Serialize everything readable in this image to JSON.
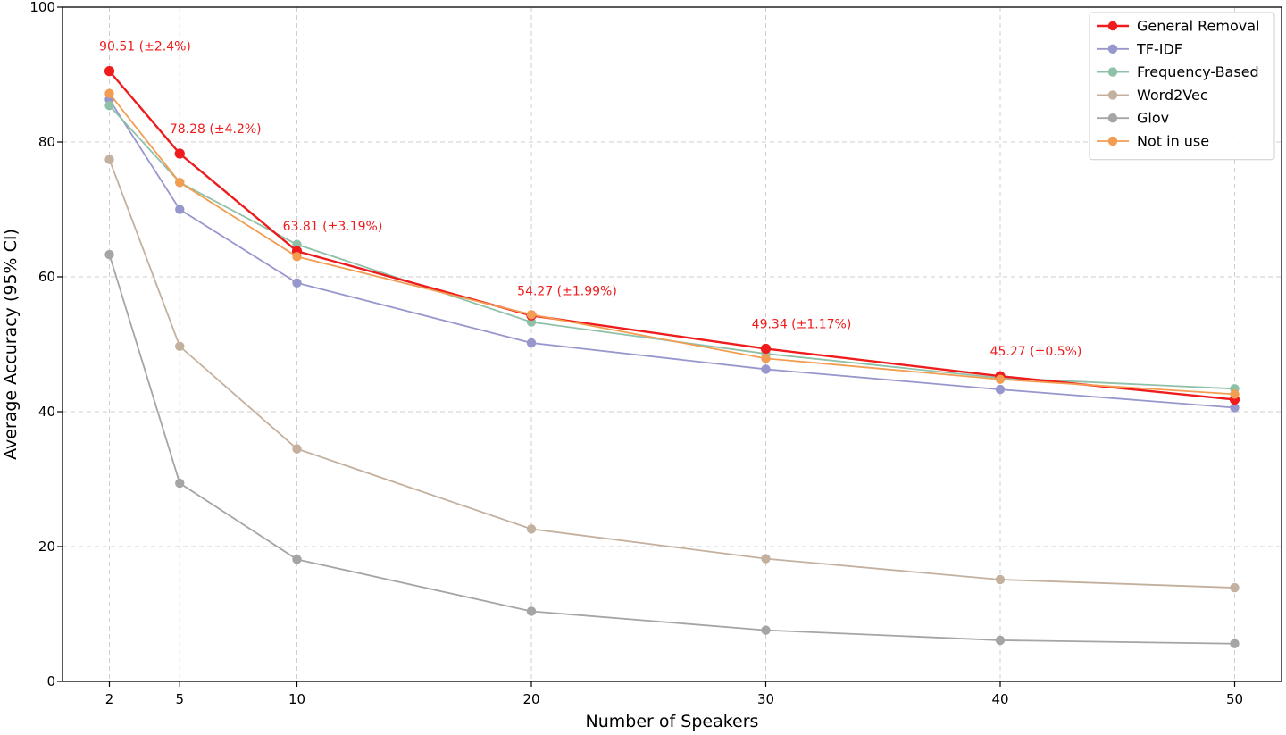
{
  "chart_data": {
    "type": "line",
    "title": "",
    "xlabel": "Number of Speakers",
    "ylabel": "Average Accuracy (95% CI)",
    "x": [
      2,
      5,
      10,
      20,
      30,
      40,
      50
    ],
    "xlim": [
      0,
      52
    ],
    "ylim": [
      0,
      100
    ],
    "xticks": [
      2,
      5,
      10,
      20,
      30,
      40,
      50
    ],
    "yticks": [
      0,
      20,
      40,
      60,
      80,
      100
    ],
    "grid": true,
    "legend_position": "top-right",
    "series": [
      {
        "name": "General Removal",
        "color": "#ee1c1c",
        "emphasis": true,
        "values": [
          90.51,
          78.28,
          63.81,
          54.27,
          49.34,
          45.27,
          41.8
        ]
      },
      {
        "name": "TF-IDF",
        "color": "#9797cd",
        "values": [
          86.3,
          70.0,
          59.1,
          50.2,
          46.3,
          43.3,
          40.6
        ]
      },
      {
        "name": "Frequency-Based",
        "color": "#8fc1a9",
        "values": [
          85.4,
          74.0,
          64.8,
          53.3,
          48.6,
          45.0,
          43.4
        ]
      },
      {
        "name": "Word2Vec",
        "color": "#c4b09f",
        "values": [
          77.4,
          49.7,
          34.5,
          22.6,
          18.2,
          15.1,
          13.9
        ]
      },
      {
        "name": "Glov",
        "color": "#a5a5a5",
        "values": [
          63.3,
          29.4,
          18.1,
          10.4,
          7.6,
          6.1,
          5.6
        ]
      },
      {
        "name": "Not in use",
        "color": "#f29d51",
        "values": [
          87.2,
          74.0,
          63.0,
          54.4,
          47.9,
          44.8,
          42.6
        ]
      }
    ],
    "annotations": [
      {
        "x": 2,
        "y": 90.51,
        "text": "90.51 (±2.4%)"
      },
      {
        "x": 5,
        "y": 78.28,
        "text": "78.28 (±4.2%)"
      },
      {
        "x": 10,
        "y": 63.81,
        "text": "63.81 (±3.19%)"
      },
      {
        "x": 20,
        "y": 54.27,
        "text": "54.27 (±1.99%)"
      },
      {
        "x": 30,
        "y": 49.34,
        "text": "49.34 (±1.17%)"
      },
      {
        "x": 40,
        "y": 45.27,
        "text": "45.27 (±0.5%)"
      }
    ],
    "annotation_color": "#ee1c1c"
  }
}
